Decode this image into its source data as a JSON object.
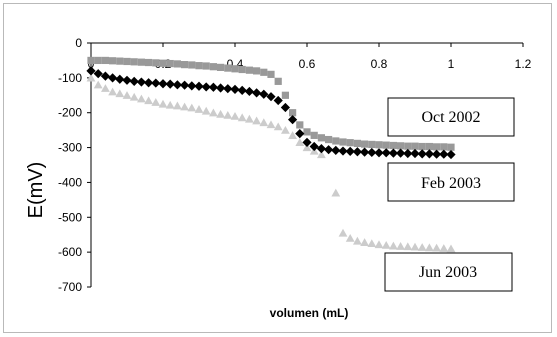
{
  "chart_data": {
    "type": "scatter",
    "xlabel": "volumen (mL)",
    "ylabel": "E(mV)",
    "xlim": [
      0,
      1.2
    ],
    "ylim": [
      -700,
      0
    ],
    "xticks": [
      "0",
      "0.2",
      "0.4",
      "0.6",
      "0.8",
      "1",
      "1.2"
    ],
    "yticks": [
      "0",
      "-100",
      "-200",
      "-300",
      "-400",
      "-500",
      "-600",
      "-700"
    ],
    "grid": false,
    "series": [
      {
        "name": "Oct 2002",
        "marker": "square",
        "color": "#999999",
        "x": [
          0.0,
          0.02,
          0.04,
          0.06,
          0.08,
          0.1,
          0.12,
          0.14,
          0.16,
          0.18,
          0.2,
          0.22,
          0.24,
          0.26,
          0.28,
          0.3,
          0.32,
          0.34,
          0.36,
          0.38,
          0.4,
          0.42,
          0.44,
          0.46,
          0.48,
          0.5,
          0.52,
          0.54,
          0.56,
          0.58,
          0.6,
          0.62,
          0.64,
          0.66,
          0.68,
          0.7,
          0.72,
          0.74,
          0.76,
          0.78,
          0.8,
          0.82,
          0.84,
          0.86,
          0.88,
          0.9,
          0.92,
          0.94,
          0.96,
          0.98,
          1.0
        ],
        "y": [
          -50,
          -50,
          -50,
          -51,
          -52,
          -53,
          -54,
          -55,
          -56,
          -57,
          -58,
          -59,
          -60,
          -62,
          -63,
          -65,
          -66,
          -68,
          -70,
          -72,
          -74,
          -76,
          -78,
          -80,
          -84,
          -90,
          -110,
          -150,
          -200,
          -235,
          -255,
          -265,
          -272,
          -277,
          -281,
          -284,
          -286,
          -288,
          -290,
          -291,
          -292,
          -293,
          -294,
          -295,
          -296,
          -296,
          -297,
          -297,
          -298,
          -298,
          -299
        ]
      },
      {
        "name": "Feb 2003",
        "marker": "diamond",
        "color": "#000000",
        "x": [
          0.0,
          0.02,
          0.04,
          0.06,
          0.08,
          0.1,
          0.12,
          0.14,
          0.16,
          0.18,
          0.2,
          0.22,
          0.24,
          0.26,
          0.28,
          0.3,
          0.32,
          0.34,
          0.36,
          0.38,
          0.4,
          0.42,
          0.44,
          0.46,
          0.48,
          0.5,
          0.52,
          0.54,
          0.56,
          0.58,
          0.6,
          0.62,
          0.64,
          0.66,
          0.68,
          0.7,
          0.72,
          0.74,
          0.76,
          0.78,
          0.8,
          0.82,
          0.84,
          0.86,
          0.88,
          0.9,
          0.92,
          0.94,
          0.96,
          0.98,
          1.0
        ],
        "y": [
          -80,
          -88,
          -95,
          -100,
          -104,
          -107,
          -110,
          -112,
          -114,
          -115,
          -117,
          -118,
          -120,
          -121,
          -123,
          -124,
          -126,
          -127,
          -129,
          -131,
          -133,
          -136,
          -139,
          -143,
          -147,
          -154,
          -165,
          -185,
          -220,
          -260,
          -285,
          -297,
          -303,
          -306,
          -308,
          -310,
          -311,
          -312,
          -313,
          -314,
          -315,
          -315,
          -316,
          -316,
          -317,
          -317,
          -318,
          -318,
          -319,
          -319,
          -320
        ]
      },
      {
        "name": "Jun 2003",
        "marker": "triangle",
        "color": "#cccccc",
        "x": [
          0.0,
          0.02,
          0.04,
          0.06,
          0.08,
          0.1,
          0.12,
          0.14,
          0.16,
          0.18,
          0.2,
          0.22,
          0.24,
          0.26,
          0.28,
          0.3,
          0.32,
          0.34,
          0.36,
          0.38,
          0.4,
          0.42,
          0.44,
          0.46,
          0.48,
          0.5,
          0.52,
          0.54,
          0.56,
          0.58,
          0.6,
          0.62,
          0.64,
          0.68,
          0.7,
          0.72,
          0.74,
          0.76,
          0.78,
          0.8,
          0.82,
          0.84,
          0.86,
          0.88,
          0.9,
          0.92,
          0.94,
          0.96,
          0.98,
          1.0
        ],
        "y": [
          -100,
          -120,
          -130,
          -140,
          -145,
          -150,
          -155,
          -160,
          -165,
          -170,
          -175,
          -178,
          -180,
          -183,
          -186,
          -190,
          -195,
          -200,
          -204,
          -207,
          -210,
          -214,
          -218,
          -223,
          -228,
          -234,
          -240,
          -250,
          -265,
          -285,
          -300,
          -310,
          -320,
          -430,
          -545,
          -560,
          -568,
          -572,
          -575,
          -578,
          -580,
          -582,
          -583,
          -584,
          -585,
          -586,
          -587,
          -588,
          -589,
          -590
        ]
      }
    ]
  }
}
